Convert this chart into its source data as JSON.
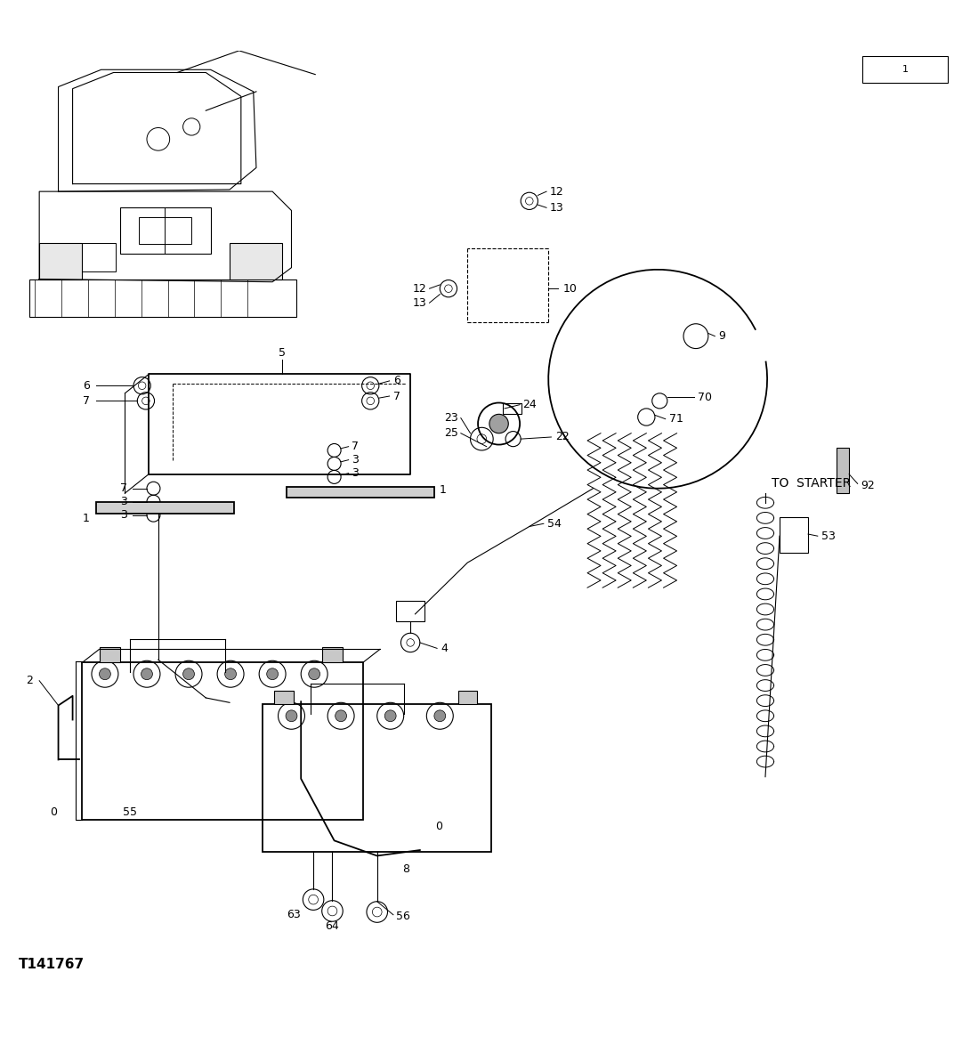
{
  "figure_width": 10.72,
  "figure_height": 11.83,
  "dpi": 100,
  "bg_color": "#ffffff",
  "lc": "#000000",
  "figure_code": "T141767",
  "to_starter_text": "TO  STARTER",
  "lw_thin": 0.8,
  "lw_med": 1.3,
  "lw_thick": 2.5,
  "label_fontsize": 9,
  "code_fontsize": 11
}
